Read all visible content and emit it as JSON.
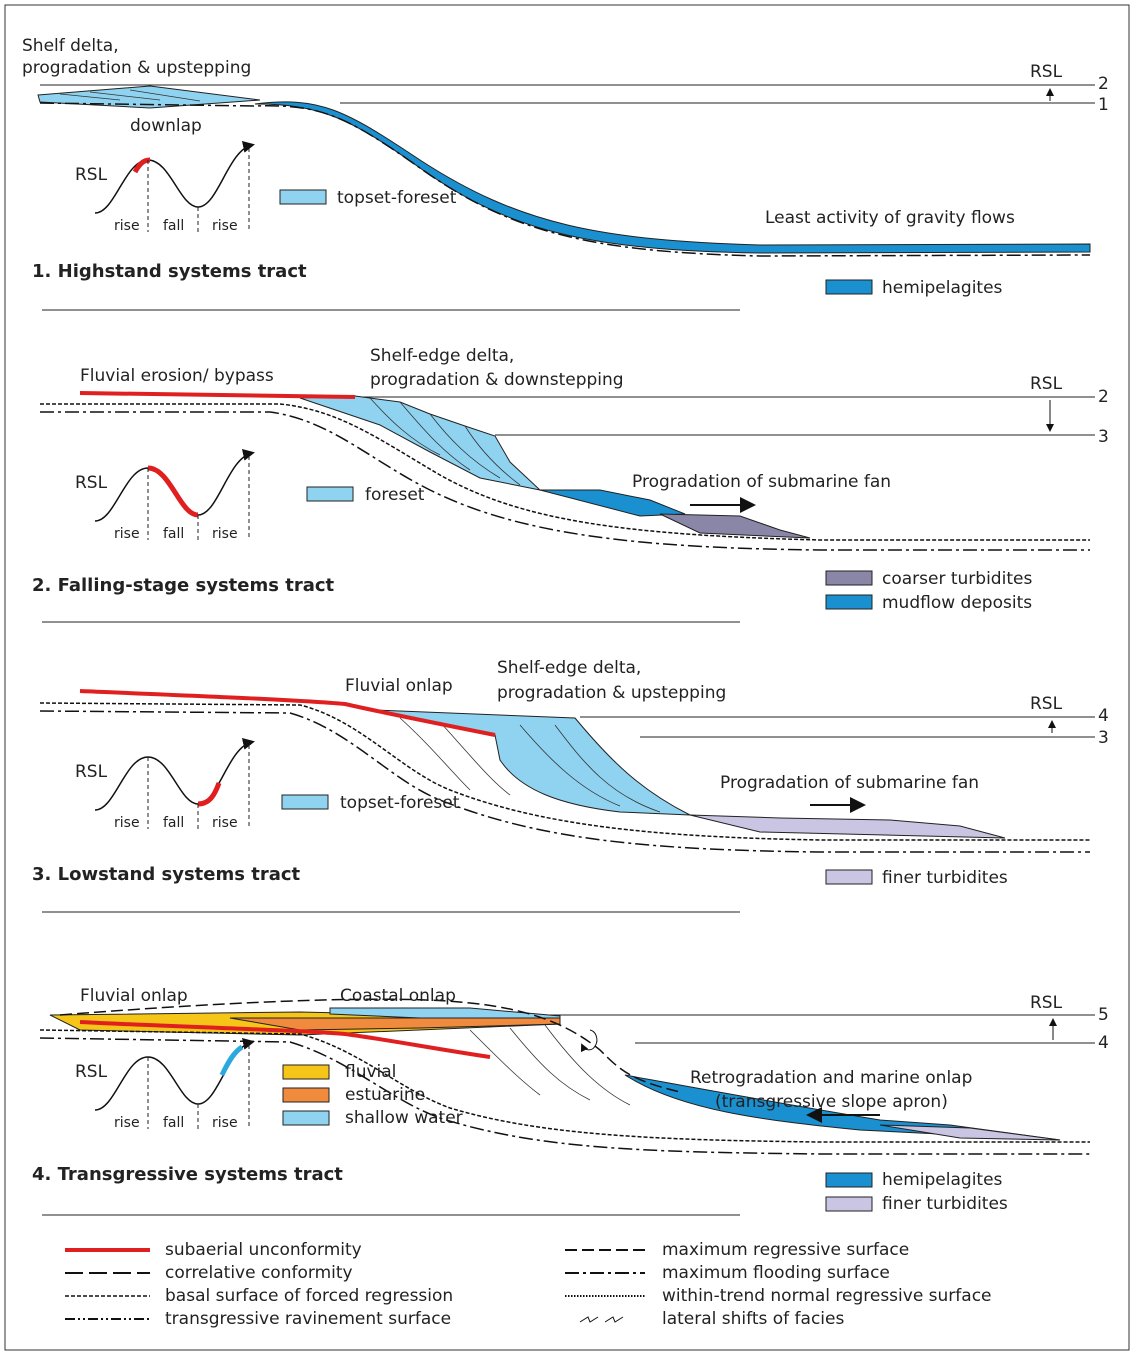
{
  "panels": [
    {
      "annotations": [
        "Shelf delta,",
        "progradation & upstepping",
        "downlap",
        "Least activity of gravity flows"
      ],
      "rsl": "RSL",
      "levels": [
        "2",
        "1"
      ],
      "curve": {
        "label": "RSL",
        "phases": [
          "rise",
          "fall",
          "rise"
        ]
      },
      "legend": [
        "topset-foreset",
        "hemipelagites"
      ],
      "title": "1.  Highstand systems tract"
    },
    {
      "annotations": [
        "Fluvial erosion/ bypass",
        "Shelf-edge delta,",
        "progradation & downstepping",
        "Progradation of submarine fan"
      ],
      "rsl": "RSL",
      "levels": [
        "2",
        "3"
      ],
      "curve": {
        "label": "RSL",
        "phases": [
          "rise",
          "fall",
          "rise"
        ]
      },
      "legend": [
        "foreset",
        "coarser turbidites",
        "mudflow deposits"
      ],
      "title": "2.  Falling-stage systems tract"
    },
    {
      "annotations": [
        "Fluvial onlap",
        "Shelf-edge delta,",
        "progradation & upstepping",
        "Progradation of submarine fan"
      ],
      "rsl": "RSL",
      "levels": [
        "4",
        "3"
      ],
      "curve": {
        "label": "RSL",
        "phases": [
          "rise",
          "fall",
          "rise"
        ]
      },
      "legend": [
        "topset-foreset",
        "finer turbidites"
      ],
      "title": "3.  Lowstand systems tract"
    },
    {
      "annotations": [
        "Fluvial onlap",
        "Coastal onlap",
        "Retrogradation and marine onlap",
        "(transgressive slope apron)"
      ],
      "rsl": "RSL",
      "levels": [
        "5",
        "4"
      ],
      "curve": {
        "label": "RSL",
        "phases": [
          "rise",
          "fall",
          "rise"
        ]
      },
      "legend": [
        "fluvial",
        "estuarine",
        "shallow water",
        "hemipelagites",
        "finer turbidites"
      ],
      "title": "4.  Transgressive systems tract"
    }
  ],
  "legend": [
    "subaerial unconformity",
    "correlative conformity",
    "basal surface of forced regression",
    "transgressive ravinement surface",
    "maximum regressive surface",
    "maximum flooding surface",
    "within-trend normal regressive surface",
    "lateral shifts of facies"
  ]
}
